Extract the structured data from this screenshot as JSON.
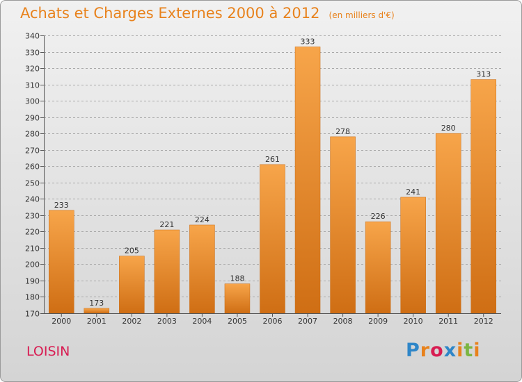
{
  "chart_data": {
    "type": "bar",
    "title": "Achats et Charges Externes 2000 à 2012",
    "subtitle": "(en milliers d'€)",
    "categories": [
      "2000",
      "2001",
      "2002",
      "2003",
      "2004",
      "2005",
      "2006",
      "2007",
      "2008",
      "2009",
      "2010",
      "2011",
      "2012"
    ],
    "values": [
      233,
      173,
      205,
      221,
      224,
      188,
      261,
      333,
      278,
      226,
      241,
      280,
      313
    ],
    "ylim": [
      170,
      340
    ],
    "yticks": [
      170,
      180,
      190,
      200,
      210,
      220,
      230,
      240,
      250,
      260,
      270,
      280,
      290,
      300,
      310,
      320,
      330,
      340
    ],
    "grid": true,
    "bar_color_top": "#f7a54a",
    "bar_color_bottom": "#cf6e14",
    "title_color": "#e8821c"
  },
  "footer": {
    "commune": "LOISIN",
    "commune_color": "#d81c52"
  },
  "logo": {
    "letters": [
      "P",
      "r",
      "o",
      "x",
      "i",
      "t",
      "i"
    ],
    "colors": [
      "#2e86c8",
      "#e8821c",
      "#d81c52",
      "#2e86c8",
      "#e8821c",
      "#7bb542",
      "#e8821c"
    ]
  }
}
